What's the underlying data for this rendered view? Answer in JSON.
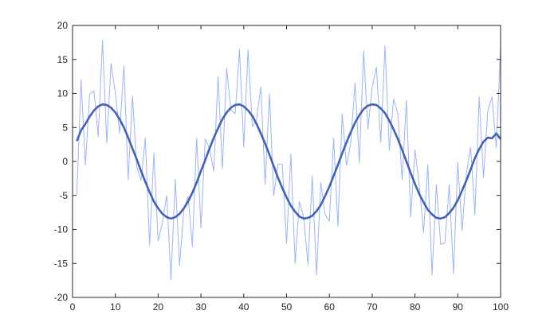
{
  "chart_data": {
    "type": "line",
    "title": "",
    "xlabel": "",
    "ylabel": "",
    "xlim": [
      0,
      100
    ],
    "ylim": [
      -20,
      20
    ],
    "xticks": [
      0,
      10,
      20,
      30,
      40,
      50,
      60,
      70,
      80,
      90,
      100
    ],
    "yticks": [
      -20,
      -15,
      -10,
      -5,
      0,
      5,
      10,
      15,
      20
    ],
    "grid": false,
    "legend": "none",
    "x": [
      1,
      2,
      3,
      4,
      5,
      6,
      7,
      8,
      9,
      10,
      11,
      12,
      13,
      14,
      15,
      16,
      17,
      18,
      19,
      20,
      21,
      22,
      23,
      24,
      25,
      26,
      27,
      28,
      29,
      30,
      31,
      32,
      33,
      34,
      35,
      36,
      37,
      38,
      39,
      40,
      41,
      42,
      43,
      44,
      45,
      46,
      47,
      48,
      49,
      50,
      51,
      52,
      53,
      54,
      55,
      56,
      57,
      58,
      59,
      60,
      61,
      62,
      63,
      64,
      65,
      66,
      67,
      68,
      69,
      70,
      71,
      72,
      73,
      74,
      75,
      76,
      77,
      78,
      79,
      80,
      81,
      82,
      83,
      84,
      85,
      86,
      87,
      88,
      89,
      90,
      91,
      92,
      93,
      94,
      95,
      96,
      97,
      98,
      99,
      100
    ],
    "series": [
      {
        "color": "#9db4f5",
        "values": [
          -4.9,
          12.0,
          -0.6,
          9.9,
          10.4,
          3.6,
          17.8,
          2.7,
          14.4,
          10.1,
          4.1,
          14.1,
          -2.7,
          9.6,
          -0.8,
          -2.8,
          3.5,
          -12.3,
          1.2,
          -11.7,
          -9.0,
          -5.0,
          -17.4,
          -2.6,
          -15.3,
          -7.1,
          -5.1,
          -12.5,
          3.4,
          -9.8,
          3.3,
          1.9,
          -1.4,
          12.5,
          -1.1,
          13.7,
          7.6,
          7.0,
          16.5,
          2.1,
          16.4,
          5.1,
          6.2,
          11.0,
          -3.4,
          10.0,
          -5.0,
          -0.4,
          -0.4,
          -12.1,
          1.1,
          -15.0,
          -5.9,
          -8.2,
          -15.2,
          -2.1,
          -16.7,
          -3.1,
          -7.8,
          -8.8,
          3.4,
          -9.6,
          7.0,
          -0.6,
          2.7,
          11.6,
          -0.2,
          16.3,
          4.7,
          10.9,
          13.9,
          2.8,
          17.0,
          1.6,
          9.2,
          7.0,
          -2.7,
          9.0,
          -8.2,
          1.7,
          -3.5,
          -10.5,
          -0.5,
          -16.7,
          -3.4,
          -12.2,
          -12.0,
          -3.4,
          -16.5,
          -0.1,
          -10.2,
          -1.8,
          2.1,
          -7.8,
          9.5,
          -2.4,
          7.4,
          9.5,
          2.0,
          17.1
        ]
      },
      {
        "color": "#4561b5",
        "values": [
          3.0,
          4.6,
          5.5,
          6.6,
          7.5,
          8.1,
          8.4,
          8.3,
          7.9,
          7.2,
          6.2,
          5.0,
          3.5,
          1.9,
          0.3,
          -1.4,
          -3.0,
          -4.5,
          -5.9,
          -6.9,
          -7.7,
          -8.2,
          -8.4,
          -8.2,
          -7.7,
          -6.9,
          -5.9,
          -4.6,
          -3.1,
          -1.4,
          0.2,
          1.9,
          3.5,
          4.9,
          6.2,
          7.2,
          7.9,
          8.3,
          8.4,
          8.1,
          7.5,
          6.7,
          5.5,
          4.1,
          2.6,
          1.0,
          -0.7,
          -2.4,
          -3.9,
          -5.3,
          -6.5,
          -7.4,
          -8.1,
          -8.4,
          -8.3,
          -8.0,
          -7.3,
          -6.4,
          -5.1,
          -3.7,
          -2.1,
          -0.5,
          1.2,
          2.8,
          4.3,
          5.7,
          6.8,
          7.7,
          8.2,
          8.4,
          8.3,
          7.8,
          7.1,
          6.0,
          4.7,
          3.3,
          1.7,
          0.0,
          -1.7,
          -3.3,
          -4.8,
          -6.0,
          -7.1,
          -7.8,
          -8.3,
          -8.4,
          -8.2,
          -7.6,
          -6.8,
          -5.7,
          -4.3,
          -2.8,
          -1.2,
          0.5,
          1.8,
          2.9,
          3.5,
          3.4,
          4.1,
          3.3
        ]
      }
    ]
  }
}
